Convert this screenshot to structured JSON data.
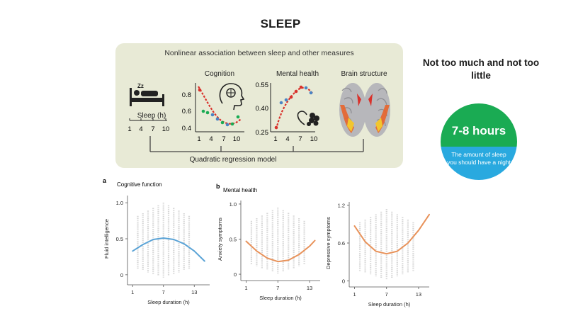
{
  "title": "SLEEP",
  "panel": {
    "heading": "Nonlinear association between sleep and other measures",
    "sleep_label": "Sleep (h)",
    "sleep_ticks": [
      "1",
      "4",
      "7",
      "10"
    ],
    "zz": "Zz",
    "cognition": {
      "title": "Cognition",
      "yticks": [
        "0.8",
        "0.6",
        "0.4"
      ],
      "xticks": [
        "1",
        "4",
        "7",
        "10"
      ]
    },
    "mental": {
      "title": "Mental health",
      "yticks": [
        "0.55",
        "0.40",
        "0.25"
      ],
      "xticks": [
        "1",
        "4",
        "7",
        "10"
      ]
    },
    "brain": {
      "title": "Brain structure"
    },
    "model_label": "Quadratic regression model"
  },
  "tagline": "Not too much and not too little",
  "highlight": {
    "hours": "7-8 hours",
    "caption": "The amount of sleep you should have a night",
    "colors": {
      "top": "#1aab53",
      "bottom": "#29a9df"
    }
  },
  "chart_data": [
    {
      "type": "scatter",
      "panel_letter": "a",
      "title": "Cognitive function",
      "xlabel": "Sleep duration (h)",
      "ylabel": "Fluid intelligence",
      "xticks": [
        "1",
        "7",
        "13"
      ],
      "yticks": [
        "0",
        "0.5",
        "1.0"
      ],
      "xlim": [
        0,
        16
      ],
      "ylim": [
        -0.1,
        1.1
      ],
      "fit_color": "#5aa3d6",
      "fit_x": [
        1,
        3,
        5,
        7,
        9,
        11,
        13,
        15
      ],
      "fit_y": [
        0.33,
        0.42,
        0.49,
        0.51,
        0.49,
        0.43,
        0.33,
        0.19
      ]
    },
    {
      "type": "scatter",
      "panel_letter": "b",
      "title": "Mental health",
      "xlabel": "Sleep duration (h)",
      "ylabel": "Anxiety symptoms",
      "xticks": [
        "1",
        "7",
        "13"
      ],
      "yticks": [
        "0",
        "0.5",
        "1.0"
      ],
      "xlim": [
        0,
        15
      ],
      "ylim": [
        -0.05,
        1.05
      ],
      "fit_color": "#e8925a",
      "fit_x": [
        1,
        3,
        5,
        7,
        9,
        11,
        13,
        14
      ],
      "fit_y": [
        0.47,
        0.33,
        0.23,
        0.18,
        0.2,
        0.28,
        0.4,
        0.48
      ]
    },
    {
      "type": "scatter",
      "xlabel": "Sleep duration (h)",
      "ylabel": "Depressive symptoms",
      "xticks": [
        "1",
        "7",
        "13"
      ],
      "yticks": [
        "0",
        "0.6",
        "1.2"
      ],
      "xlim": [
        0,
        15
      ],
      "ylim": [
        -0.05,
        1.25
      ],
      "fit_color": "#e8925a",
      "fit_x": [
        1,
        3,
        5,
        7,
        9,
        11,
        13,
        15
      ],
      "fit_y": [
        0.87,
        0.62,
        0.47,
        0.43,
        0.47,
        0.6,
        0.8,
        1.05
      ]
    }
  ]
}
